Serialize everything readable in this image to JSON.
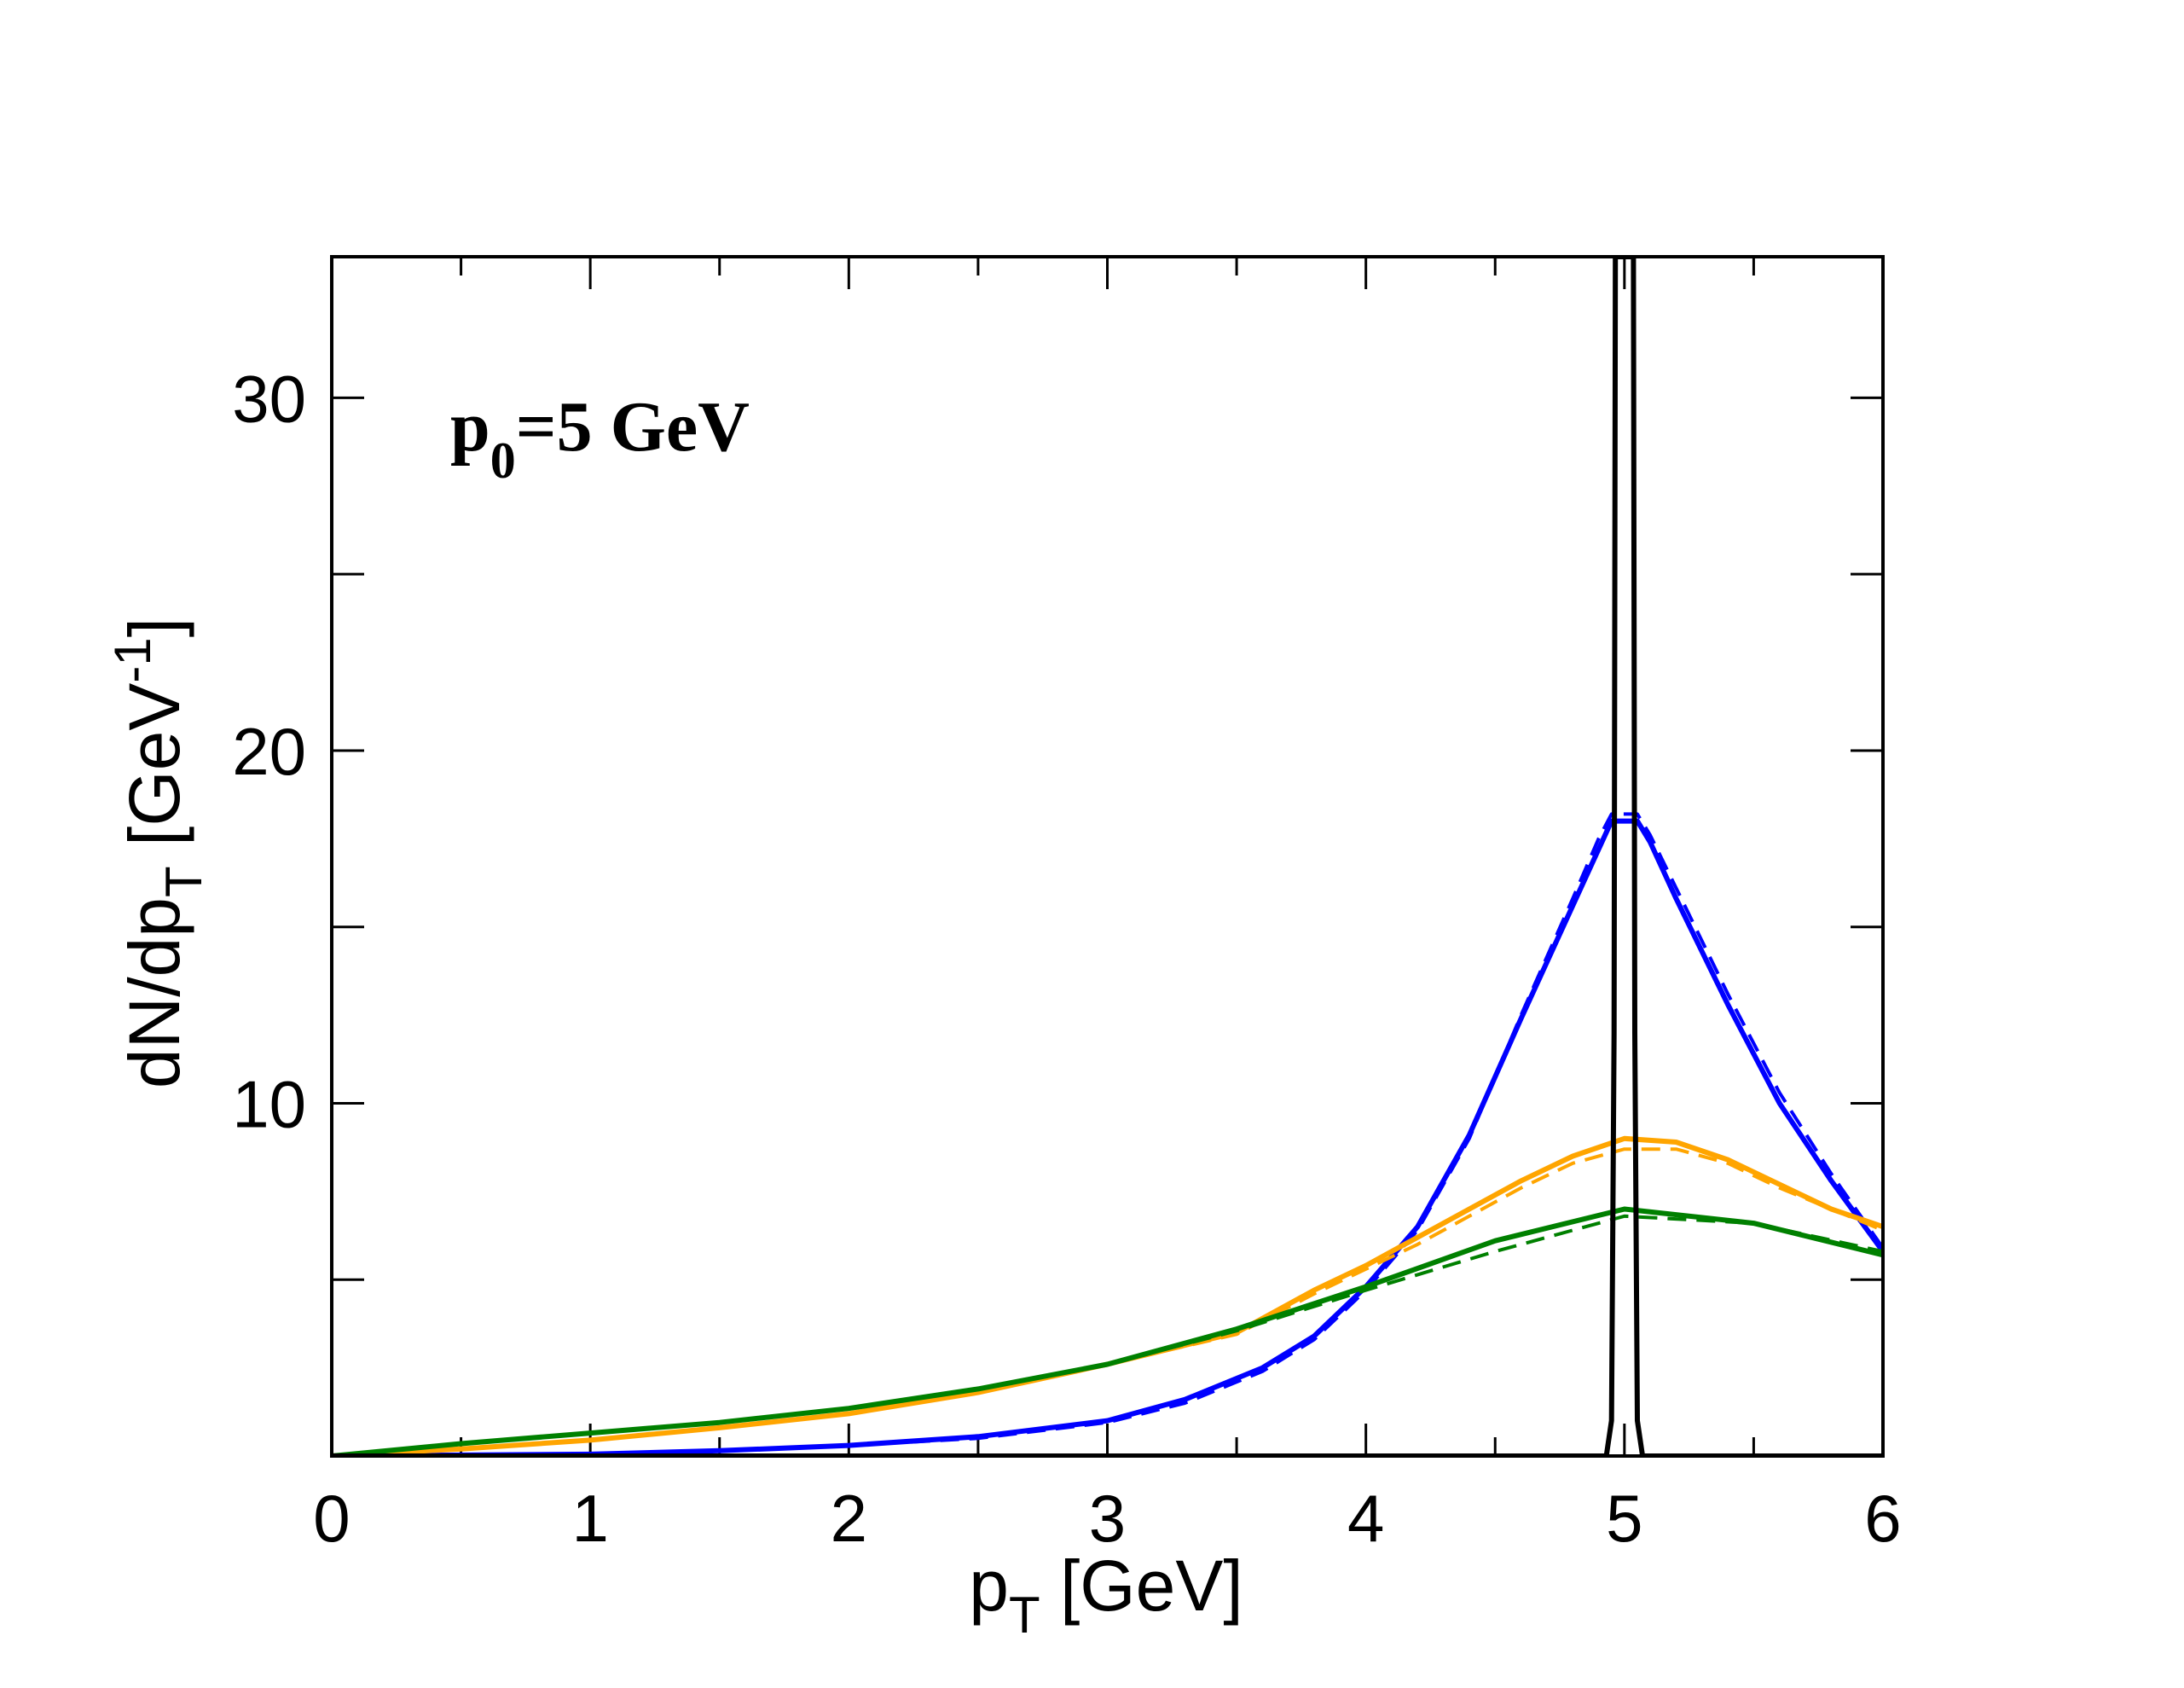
{
  "chart_data": {
    "type": "line",
    "annotation": {
      "main": "p",
      "sub": "0",
      "rest": "=5 GeV"
    },
    "xlabel": {
      "main": "p",
      "sub": "T",
      "rest": " [GeV]"
    },
    "ylabel": {
      "main": "dN/dp",
      "sub": "T",
      "mid": " [GeV",
      "sup": "-1",
      "end": "]"
    },
    "xlim": [
      0,
      6
    ],
    "ylim": [
      0,
      34
    ],
    "x_ticks": [
      0,
      1,
      2,
      3,
      4,
      5,
      6
    ],
    "x_minor_ticks": [
      0.5,
      1.5,
      2.5,
      3.5,
      4.5,
      5.5
    ],
    "y_tick_labels": [
      10,
      20,
      30
    ],
    "y_ticks": [
      5,
      10,
      15,
      20,
      25,
      30
    ],
    "grid": false,
    "legend": "none",
    "series": [
      {
        "color": "#0000ff",
        "dash": "solid",
        "x": [
          0,
          1,
          1.5,
          2,
          2.5,
          3,
          3.3,
          3.6,
          3.8,
          4.0,
          4.2,
          4.4,
          4.6,
          4.8,
          4.9,
          4.95,
          5.05,
          5.1,
          5.2,
          5.4,
          5.6,
          5.8,
          6.0
        ],
        "y": [
          0,
          0.05,
          0.15,
          0.3,
          0.55,
          1.0,
          1.6,
          2.5,
          3.4,
          4.8,
          6.5,
          9.1,
          12.4,
          15.6,
          17.2,
          18.0,
          18.0,
          17.4,
          15.8,
          12.8,
          10.0,
          7.8,
          5.8
        ]
      },
      {
        "color": "#0000ff",
        "dash": "dashed",
        "x": [
          0,
          1,
          1.5,
          2,
          2.5,
          3,
          3.3,
          3.6,
          3.8,
          4.0,
          4.2,
          4.4,
          4.6,
          4.8,
          4.9,
          4.95,
          5.05,
          5.1,
          5.2,
          5.4,
          5.6,
          5.8,
          6.0
        ],
        "y": [
          0,
          0.05,
          0.15,
          0.3,
          0.5,
          0.95,
          1.5,
          2.4,
          3.3,
          4.7,
          6.4,
          9.0,
          12.5,
          15.8,
          17.5,
          18.2,
          18.2,
          17.6,
          16.1,
          13.1,
          10.3,
          8.0,
          5.9
        ]
      },
      {
        "color": "#ffa500",
        "dash": "solid",
        "x": [
          0,
          0.5,
          1,
          1.5,
          2,
          2.5,
          3,
          3.5,
          3.8,
          4,
          4.2,
          4.4,
          4.6,
          4.8,
          5.0,
          5.2,
          5.4,
          5.6,
          5.8,
          6.0
        ],
        "y": [
          0,
          0.2,
          0.45,
          0.8,
          1.2,
          1.8,
          2.6,
          3.5,
          4.7,
          5.4,
          6.2,
          7.0,
          7.8,
          8.5,
          9.0,
          8.9,
          8.4,
          7.7,
          7.0,
          6.5
        ]
      },
      {
        "color": "#ffa500",
        "dash": "dashed",
        "x": [
          0,
          0.5,
          1,
          1.5,
          2,
          2.5,
          3,
          3.5,
          3.8,
          4,
          4.2,
          4.4,
          4.6,
          4.8,
          5.0,
          5.2,
          5.4,
          5.6,
          5.8,
          6.0
        ],
        "y": [
          0,
          0.2,
          0.45,
          0.8,
          1.2,
          1.8,
          2.6,
          3.45,
          4.6,
          5.3,
          6.0,
          6.8,
          7.6,
          8.3,
          8.7,
          8.7,
          8.3,
          7.6,
          7.0,
          6.4
        ]
      },
      {
        "color": "#008000",
        "dash": "solid",
        "x": [
          0,
          0.5,
          1,
          1.5,
          2,
          2.5,
          3,
          3.5,
          4.0,
          4.5,
          5.0,
          5.5,
          6.0
        ],
        "y": [
          0,
          0.35,
          0.65,
          0.95,
          1.35,
          1.9,
          2.6,
          3.6,
          4.8,
          6.1,
          7.0,
          6.6,
          5.7
        ]
      },
      {
        "color": "#008000",
        "dash": "dashed",
        "x": [
          0,
          0.5,
          1,
          1.5,
          2,
          2.5,
          3,
          3.5,
          4.0,
          4.5,
          5.0,
          5.5,
          6.0
        ],
        "y": [
          0,
          0.35,
          0.65,
          0.95,
          1.35,
          1.9,
          2.6,
          3.55,
          4.7,
          5.8,
          6.8,
          6.6,
          5.8
        ]
      },
      {
        "color": "#000000",
        "dash": "solid",
        "x": [
          0,
          4.93,
          4.95,
          4.96,
          4.965,
          5.035,
          5.04,
          5.05,
          5.07,
          6.0
        ],
        "y": [
          0,
          0,
          1.0,
          12,
          34,
          34,
          12,
          1.0,
          0,
          0
        ]
      }
    ]
  }
}
